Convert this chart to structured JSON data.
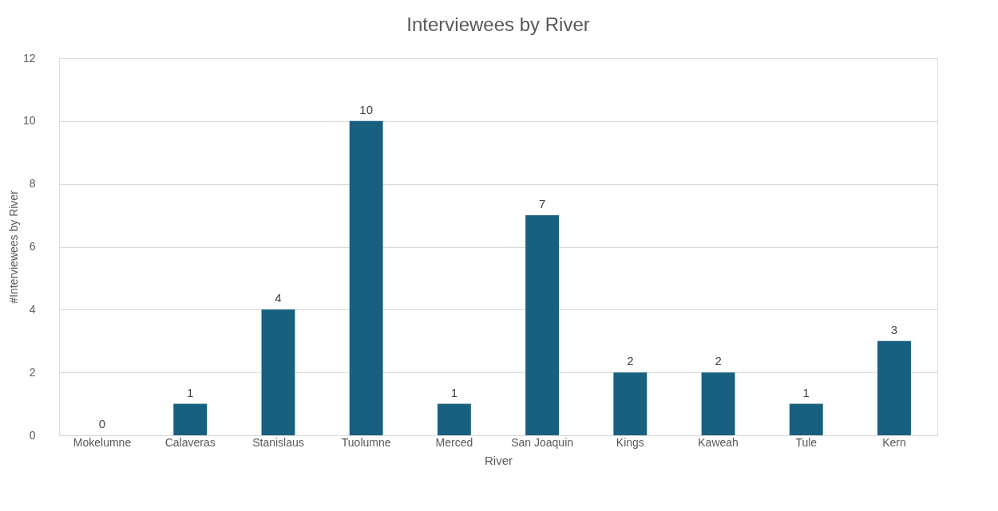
{
  "chart_data": {
    "type": "bar",
    "title": "Interviewees by River",
    "xlabel": "River",
    "ylabel": "#Interviewees by River",
    "categories": [
      "Mokelumne",
      "Calaveras",
      "Stanislaus",
      "Tuolumne",
      "Merced",
      "San Joaquin",
      "Kings",
      "Kaweah",
      "Tule",
      "Kern"
    ],
    "values": [
      0,
      1,
      4,
      10,
      1,
      7,
      2,
      2,
      1,
      3
    ],
    "color": "#17607f",
    "ylim": [
      0,
      12
    ],
    "yticks": [
      0,
      2,
      4,
      6,
      8,
      10,
      12
    ],
    "grid": "y",
    "data_labels": true
  }
}
